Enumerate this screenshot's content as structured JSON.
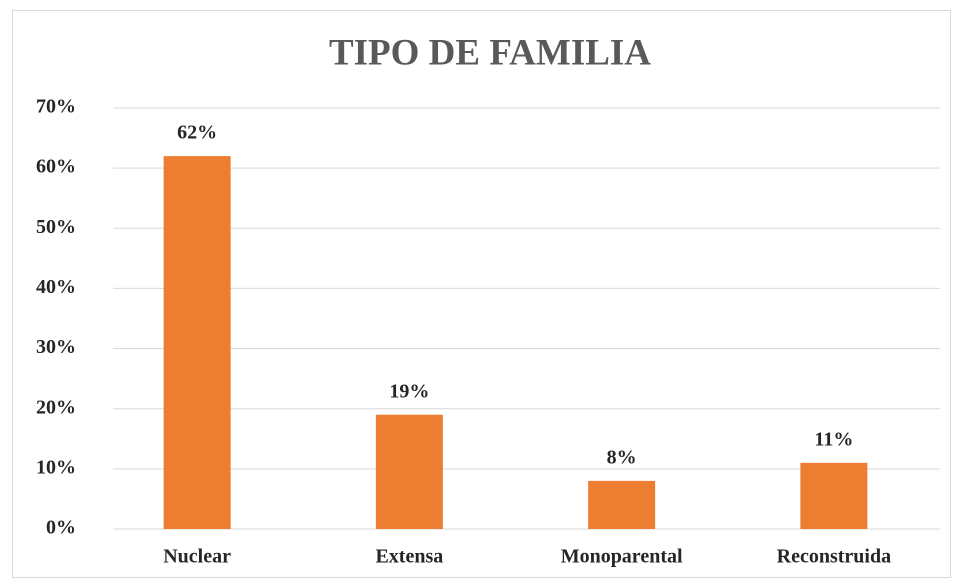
{
  "chart_data": {
    "type": "bar",
    "title": "TIPO DE FAMILIA",
    "categories": [
      "Nuclear",
      "Extensa",
      "Monoparental",
      "Reconstruida"
    ],
    "values": [
      62,
      19,
      8,
      11
    ],
    "value_labels": [
      "62%",
      "19%",
      "8%",
      "11%"
    ],
    "color": "#ed7d31",
    "ylim": [
      0,
      70
    ],
    "yticks": [
      {
        "value": 0,
        "label": "0%"
      },
      {
        "value": 10,
        "label": "10%"
      },
      {
        "value": 20,
        "label": "20%"
      },
      {
        "value": 30,
        "label": "30%"
      },
      {
        "value": 40,
        "label": "40%"
      },
      {
        "value": 50,
        "label": "50%"
      },
      {
        "value": 60,
        "label": "60%"
      },
      {
        "value": 70,
        "label": "70%"
      }
    ],
    "grid": true
  }
}
